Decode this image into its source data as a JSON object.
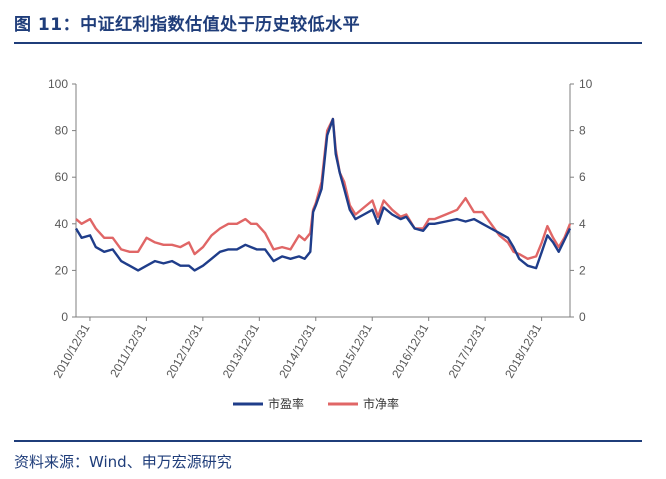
{
  "figure": {
    "title": "图  11：中证红利指数估值处于历史较低水平",
    "source": "资料来源：Wind、申万宏源研究"
  },
  "colors": {
    "heading": "#1f3d7a",
    "pe": "#1f3d8a",
    "pb": "#e06666",
    "axis": "#7f7f7f"
  },
  "chart_data": {
    "type": "line",
    "x_ticks": [
      "2010/12/31",
      "2011/12/31",
      "2012/12/31",
      "2013/12/31",
      "2014/12/31",
      "2015/12/31",
      "2016/12/31",
      "2017/12/31",
      "2018/12/31"
    ],
    "x_range": [
      2010.75,
      2019.5
    ],
    "y_left": {
      "range": [
        0,
        100
      ],
      "ticks": [
        0,
        20,
        40,
        60,
        80,
        100
      ]
    },
    "y_right": {
      "range": [
        0,
        10
      ],
      "ticks": [
        0,
        2,
        4,
        6,
        8,
        10
      ]
    },
    "legend_position": "bottom-center",
    "grid": false,
    "series": [
      {
        "name": "市盈率",
        "axis": "left",
        "x": [
          2010.75,
          2010.85,
          2011.0,
          2011.1,
          2011.25,
          2011.4,
          2011.55,
          2011.7,
          2011.85,
          2012.0,
          2012.15,
          2012.3,
          2012.45,
          2012.6,
          2012.75,
          2012.85,
          2013.0,
          2013.15,
          2013.3,
          2013.45,
          2013.6,
          2013.75,
          2013.85,
          2013.95,
          2014.1,
          2014.25,
          2014.4,
          2014.55,
          2014.7,
          2014.8,
          2014.9,
          2014.95,
          2015.0,
          2015.1,
          2015.2,
          2015.3,
          2015.35,
          2015.42,
          2015.5,
          2015.6,
          2015.7,
          2015.85,
          2016.0,
          2016.1,
          2016.2,
          2016.35,
          2016.5,
          2016.6,
          2016.75,
          2016.9,
          2017.0,
          2017.1,
          2017.3,
          2017.5,
          2017.65,
          2017.8,
          2017.95,
          2018.1,
          2018.25,
          2018.4,
          2018.5,
          2018.6,
          2018.75,
          2018.9,
          2019.0,
          2019.1,
          2019.2,
          2019.3,
          2019.4,
          2019.5
        ],
        "y": [
          38,
          34,
          35,
          30,
          28,
          29,
          24,
          22,
          20,
          22,
          24,
          23,
          24,
          22,
          22,
          20,
          22,
          25,
          28,
          29,
          29,
          31,
          30,
          29,
          29,
          24,
          26,
          25,
          26,
          25,
          28,
          45,
          48,
          55,
          78,
          85,
          70,
          62,
          55,
          46,
          42,
          44,
          46,
          40,
          47,
          44,
          42,
          43,
          38,
          37,
          40,
          40,
          41,
          42,
          41,
          42,
          40,
          38,
          36,
          34,
          30,
          25,
          22,
          21,
          28,
          35,
          32,
          28,
          33,
          38
        ]
      },
      {
        "name": "市净率",
        "axis": "right",
        "x": [
          2010.75,
          2010.85,
          2011.0,
          2011.1,
          2011.25,
          2011.4,
          2011.55,
          2011.7,
          2011.85,
          2012.0,
          2012.15,
          2012.3,
          2012.45,
          2012.6,
          2012.75,
          2012.85,
          2013.0,
          2013.15,
          2013.3,
          2013.45,
          2013.6,
          2013.75,
          2013.85,
          2013.95,
          2014.1,
          2014.25,
          2014.4,
          2014.55,
          2014.7,
          2014.8,
          2014.9,
          2014.95,
          2015.0,
          2015.1,
          2015.2,
          2015.3,
          2015.35,
          2015.42,
          2015.5,
          2015.6,
          2015.7,
          2015.85,
          2016.0,
          2016.1,
          2016.2,
          2016.35,
          2016.5,
          2016.6,
          2016.75,
          2016.9,
          2017.0,
          2017.1,
          2017.3,
          2017.5,
          2017.65,
          2017.8,
          2017.95,
          2018.1,
          2018.25,
          2018.4,
          2018.5,
          2018.6,
          2018.75,
          2018.9,
          2019.0,
          2019.1,
          2019.2,
          2019.3,
          2019.4,
          2019.5
        ],
        "y": [
          4.2,
          4.0,
          4.2,
          3.8,
          3.4,
          3.4,
          2.9,
          2.8,
          2.8,
          3.4,
          3.2,
          3.1,
          3.1,
          3.0,
          3.2,
          2.7,
          3.0,
          3.5,
          3.8,
          4.0,
          4.0,
          4.2,
          4.0,
          4.0,
          3.6,
          2.9,
          3.0,
          2.9,
          3.5,
          3.3,
          3.6,
          4.6,
          4.9,
          5.8,
          8.0,
          8.5,
          7.2,
          6.2,
          5.8,
          4.8,
          4.4,
          4.7,
          5.0,
          4.3,
          5.0,
          4.6,
          4.3,
          4.4,
          3.8,
          3.8,
          4.2,
          4.2,
          4.4,
          4.6,
          5.1,
          4.5,
          4.5,
          4.0,
          3.5,
          3.2,
          2.8,
          2.7,
          2.5,
          2.6,
          3.2,
          3.9,
          3.4,
          3.0,
          3.4,
          4.0
        ]
      }
    ]
  }
}
